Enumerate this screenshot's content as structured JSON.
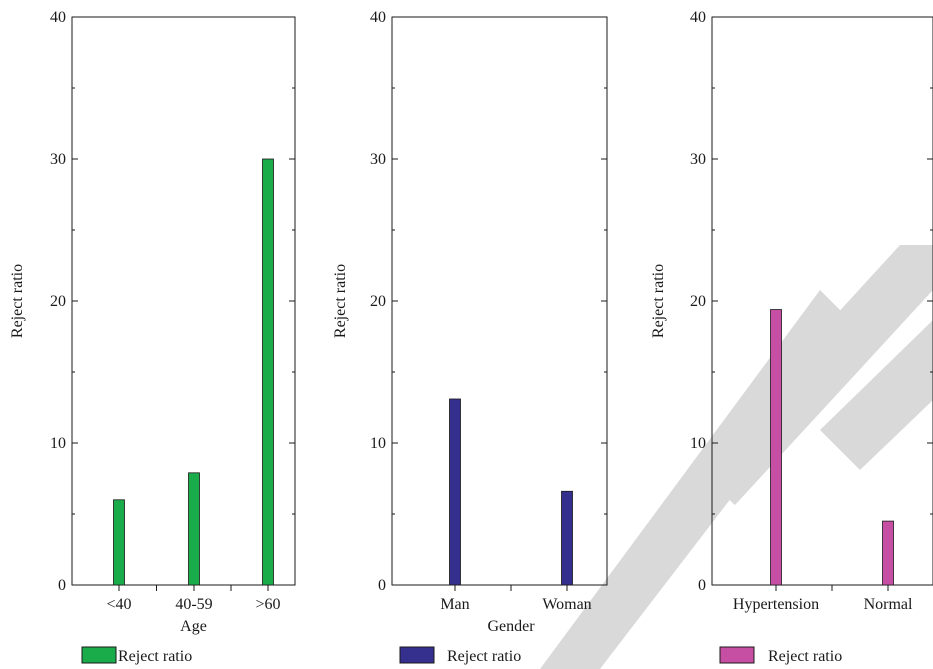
{
  "chart_data": [
    {
      "type": "bar",
      "categories": [
        "<40",
        "40-59",
        ">60"
      ],
      "series": [
        {
          "name": "Reject ratio",
          "values": [
            6.0,
            7.9,
            30.0
          ]
        }
      ],
      "xlabel": "Age",
      "ylabel": "Reject ratio",
      "ylim": [
        0,
        40
      ],
      "yticks": [
        0,
        10,
        20,
        30,
        40
      ],
      "color": "#1aab4b",
      "grid": false,
      "legend": "bottom-left"
    },
    {
      "type": "bar",
      "categories": [
        "Man",
        "Woman"
      ],
      "series": [
        {
          "name": "Reject ratio",
          "values": [
            13.1,
            6.6
          ]
        }
      ],
      "xlabel": "Gender",
      "ylabel": "Reject ratio",
      "ylim": [
        0,
        40
      ],
      "yticks": [
        0,
        10,
        20,
        30,
        40
      ],
      "color": "#352f8d",
      "grid": false,
      "legend": "bottom-left"
    },
    {
      "type": "bar",
      "categories": [
        "Hypertension",
        "Normal"
      ],
      "series": [
        {
          "name": "Reject ratio",
          "values": [
            19.4,
            4.5
          ]
        }
      ],
      "xlabel": "",
      "ylabel": "Reject ratio",
      "ylim": [
        0,
        40
      ],
      "yticks": [
        0,
        10,
        20,
        30,
        40
      ],
      "color": "#c64fa3",
      "grid": false,
      "legend": "bottom-left"
    }
  ],
  "watermark": {
    "color": "#d9d9d9"
  }
}
